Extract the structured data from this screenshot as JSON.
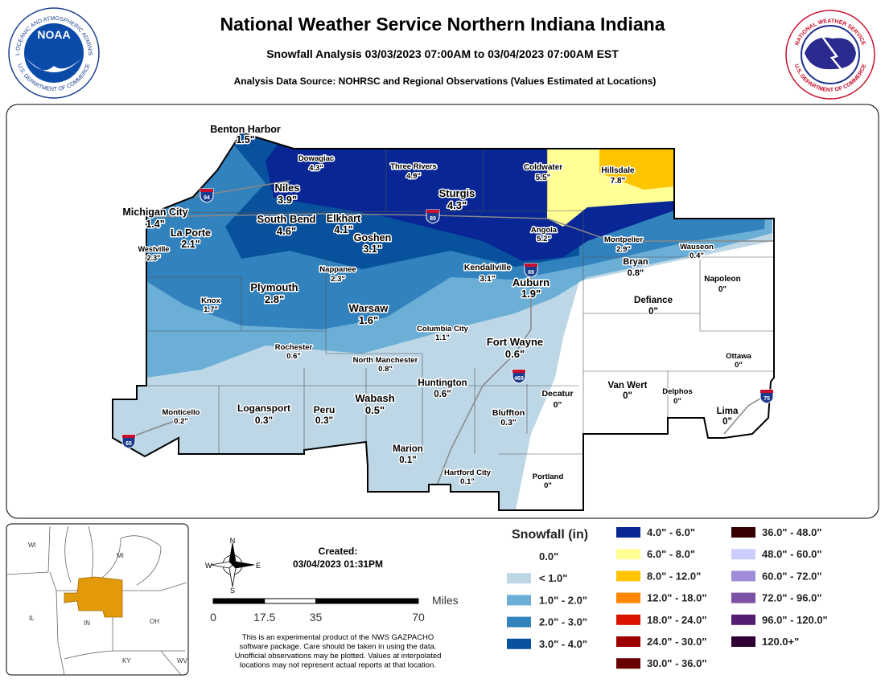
{
  "header": {
    "title": "National Weather Service Northern Indiana Indiana",
    "subtitle": "Snowfall Analysis 03/03/2023 07:00AM to 03/04/2023 07:00AM EST",
    "source": "Analysis Data Source: NOHRSC and Regional Observations (Values Estimated at Locations)"
  },
  "logos": {
    "noaa": {
      "name": "NOAA",
      "ring_top": "NATIONAL OCEANIC AND ATMOSPHERIC ADMINISTRATION",
      "ring_bottom": "U.S. DEPARTMENT OF COMMERCE"
    },
    "nws": {
      "ring_top": "NATIONAL WEATHER SERVICE",
      "ring_bottom": "U.S. DEPARTMENT OF COMMERCE"
    }
  },
  "locations": [
    {
      "name": "Benton Harbor",
      "value": "1.5\""
    },
    {
      "name": "Dowagiac",
      "value": "4.3\""
    },
    {
      "name": "Three Rivers",
      "value": "4.9\""
    },
    {
      "name": "Coldwater",
      "value": "5.5\""
    },
    {
      "name": "Hillsdale",
      "value": "7.8\""
    },
    {
      "name": "Niles",
      "value": "3.9\""
    },
    {
      "name": "Sturgis",
      "value": "4.3\""
    },
    {
      "name": "Michigan City",
      "value": "1.4\""
    },
    {
      "name": "South Bend",
      "value": "4.6\""
    },
    {
      "name": "Elkhart",
      "value": "4.1\""
    },
    {
      "name": "La Porte",
      "value": "2.1\""
    },
    {
      "name": "Goshen",
      "value": "3.1\""
    },
    {
      "name": "Angola",
      "value": "5.2\""
    },
    {
      "name": "Montpelier",
      "value": "2.9\""
    },
    {
      "name": "Westville",
      "value": "2.3\""
    },
    {
      "name": "Wauseon",
      "value": "0.4\""
    },
    {
      "name": "Bryan",
      "value": "0.8\""
    },
    {
      "name": "Nappanee",
      "value": "2.3\""
    },
    {
      "name": "Kendallville",
      "value": "3.1\""
    },
    {
      "name": "Auburn",
      "value": "1.9\""
    },
    {
      "name": "Napoleon",
      "value": "0\""
    },
    {
      "name": "Plymouth",
      "value": "2.8\""
    },
    {
      "name": "Knox",
      "value": "1.7\""
    },
    {
      "name": "Defiance",
      "value": "0\""
    },
    {
      "name": "Warsaw",
      "value": "1.6\""
    },
    {
      "name": "Columbia City",
      "value": "1.1\""
    },
    {
      "name": "Fort Wayne",
      "value": "0.6\""
    },
    {
      "name": "Rochester",
      "value": "0.6\""
    },
    {
      "name": "Ottawa",
      "value": "0\""
    },
    {
      "name": "North Manchester",
      "value": "0.8\""
    },
    {
      "name": "Huntington",
      "value": "0.6\""
    },
    {
      "name": "Decatur",
      "value": "0\""
    },
    {
      "name": "Van Wert",
      "value": "0\""
    },
    {
      "name": "Delphos",
      "value": "0\""
    },
    {
      "name": "Wabash",
      "value": "0.5\""
    },
    {
      "name": "Logansport",
      "value": "0.3\""
    },
    {
      "name": "Peru",
      "value": "0.3\""
    },
    {
      "name": "Monticello",
      "value": "0.2\""
    },
    {
      "name": "Bluffton",
      "value": "0.3\""
    },
    {
      "name": "Lima",
      "value": "0\""
    },
    {
      "name": "Marion",
      "value": "0.1\""
    },
    {
      "name": "Hartford City",
      "value": "0.1\""
    },
    {
      "name": "Portland",
      "value": "0\""
    }
  ],
  "interstates": [
    "94",
    "80",
    "69",
    "469",
    "65",
    "75"
  ],
  "legend": {
    "title": "Snowfall (in)",
    "items": [
      {
        "label": "0.0\"",
        "color": "#ffffff"
      },
      {
        "label": "< 1.0\"",
        "color": "#bdd7e7"
      },
      {
        "label": "1.0\" - 2.0\"",
        "color": "#6baed6"
      },
      {
        "label": "2.0\" - 3.0\"",
        "color": "#3182bd"
      },
      {
        "label": "3.0\" - 4.0\"",
        "color": "#08519c"
      },
      {
        "label": "4.0\" - 6.0\"",
        "color": "#082694"
      },
      {
        "label": "6.0\" - 8.0\"",
        "color": "#ffff96"
      },
      {
        "label": "8.0\" - 12.0\"",
        "color": "#ffc400"
      },
      {
        "label": "12.0\" - 18.0\"",
        "color": "#ff8700"
      },
      {
        "label": "18.0\" - 24.0\"",
        "color": "#db1400"
      },
      {
        "label": "24.0\" - 30.0\"",
        "color": "#9e0000"
      },
      {
        "label": "30.0\" - 36.0\"",
        "color": "#690000"
      },
      {
        "label": "36.0\" - 48.0\"",
        "color": "#360000"
      },
      {
        "label": "48.0\" - 60.0\"",
        "color": "#ccccff"
      },
      {
        "label": "60.0\" - 72.0\"",
        "color": "#9f8cd8"
      },
      {
        "label": "72.0\" - 96.0\"",
        "color": "#7c52a5"
      },
      {
        "label": "96.0\" - 120.0\"",
        "color": "#561c72"
      },
      {
        "label": "120.0+\"",
        "color": "#2e0033"
      }
    ]
  },
  "created": {
    "label": "Created:",
    "time": "03/04/2023 01:31PM"
  },
  "compass": {
    "n": "N",
    "e": "E",
    "s": "S",
    "w": "W"
  },
  "scale": {
    "unit": "Miles",
    "ticks": [
      0,
      17.5,
      35,
      70
    ]
  },
  "inset": {
    "states": [
      "WI",
      "MI",
      "IL",
      "IN",
      "OH",
      "KY",
      "WV"
    ]
  },
  "disclaimer": [
    "This is an experimental product of the NWS GAZPACHO",
    "software package. Care should be taken in using the data.",
    "Unofficial observations may be plotted. Values at interpolated",
    "locations may not represent actual reports at that location."
  ]
}
